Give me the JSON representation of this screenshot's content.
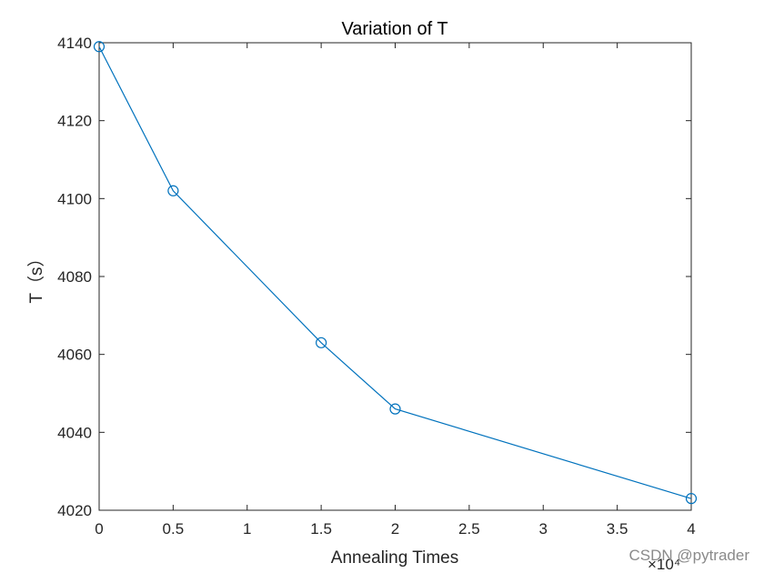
{
  "chart_data": {
    "type": "line",
    "title": "Variation of T",
    "xlabel": "Annealing Times",
    "ylabel": "T（s）",
    "x_exponent": "×10⁴",
    "x": [
      0,
      0.5,
      1.5,
      2,
      4
    ],
    "series": [
      {
        "values": [
          4139,
          4102,
          4063,
          4046,
          4023
        ],
        "color": "#0072BD",
        "marker": "circle"
      }
    ],
    "xlim": [
      0,
      4
    ],
    "ylim": [
      4020,
      4140
    ],
    "x_ticks": [
      0,
      0.5,
      1,
      1.5,
      2,
      2.5,
      3,
      3.5,
      4
    ],
    "x_tick_labels": [
      "0",
      "0.5",
      "1",
      "1.5",
      "2",
      "2.5",
      "3",
      "3.5",
      "4"
    ],
    "y_ticks": [
      4020,
      4040,
      4060,
      4080,
      4100,
      4120,
      4140
    ],
    "y_tick_labels": [
      "4020",
      "4040",
      "4060",
      "4080",
      "4100",
      "4120",
      "4140"
    ],
    "grid": false,
    "box": true
  },
  "watermark": "CSDN @pytrader"
}
